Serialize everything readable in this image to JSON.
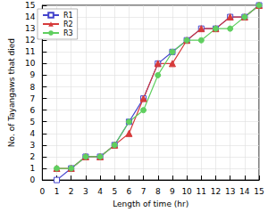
{
  "chart_data": {
    "type": "line",
    "x_label": "Length of time (hr)",
    "y_label": "No. of Tayangaws that died",
    "xlim": [
      0,
      15
    ],
    "xticks": [
      0,
      1,
      2,
      3,
      4,
      5,
      6,
      7,
      8,
      9,
      10,
      11,
      12,
      13,
      14,
      15
    ],
    "ylim": [
      0,
      15
    ],
    "yticks": [
      0,
      1,
      2,
      3,
      4,
      5,
      6,
      7,
      8,
      9,
      10,
      11,
      12,
      13,
      14,
      15
    ],
    "grid": true,
    "legend": "upper left",
    "x": [
      1,
      2,
      3,
      4,
      5,
      6,
      7,
      8,
      9,
      10,
      11,
      12,
      13,
      14,
      15
    ],
    "series": [
      {
        "name": "R1",
        "color": "#4444cc",
        "marker": "square",
        "values": [
          0,
          1,
          2,
          2,
          3,
          5,
          7,
          10,
          11,
          12,
          13,
          13,
          14,
          14,
          15
        ]
      },
      {
        "name": "R2",
        "color": "#d63b3b",
        "marker": "triangle",
        "values": [
          1,
          1,
          2,
          2,
          3,
          4,
          7,
          10,
          10,
          12,
          13,
          13,
          14,
          14,
          15
        ]
      },
      {
        "name": "R3",
        "color": "#5fcf5f",
        "marker": "circle",
        "values": [
          1,
          1,
          2,
          2,
          3,
          5,
          6,
          9,
          11,
          12,
          12,
          13,
          13,
          14,
          15
        ]
      }
    ]
  }
}
